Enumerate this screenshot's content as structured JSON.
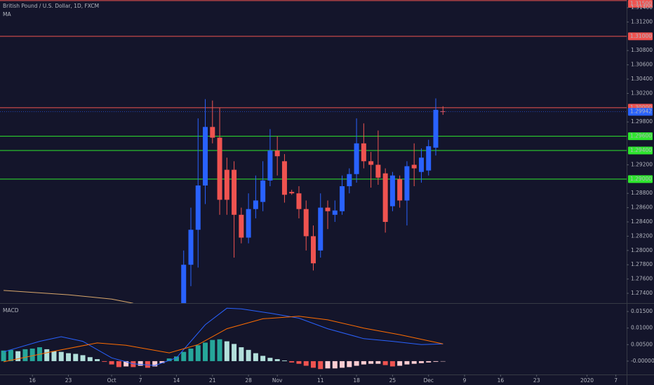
{
  "chart_data": [
    {
      "type": "candlestick",
      "title": "British Pound / U.S. Dollar, 1D, FXCM",
      "x": [
        "Oct 15",
        "Oct 16",
        "Oct 17",
        "Oct 18",
        "Oct 21",
        "Oct 22",
        "Oct 23",
        "Oct 24",
        "Oct 25",
        "Oct 28",
        "Oct 29",
        "Oct 30",
        "Oct 31",
        "Nov 1",
        "Nov 4",
        "Nov 5",
        "Nov 6",
        "Nov 7",
        "Nov 8",
        "Nov 11",
        "Nov 12",
        "Nov 13",
        "Nov 14",
        "Nov 15",
        "Nov 18",
        "Nov 19",
        "Nov 20",
        "Nov 21",
        "Nov 22",
        "Nov 25",
        "Nov 26",
        "Nov 27",
        "Nov 28",
        "Nov 29",
        "Dec 2",
        "Dec 3",
        "Dec 4"
      ],
      "open": [
        1.27,
        1.278,
        1.2829,
        1.2891,
        1.2973,
        1.2958,
        1.2913,
        1.2913,
        1.285,
        1.2818,
        1.2858,
        1.2868,
        1.2898,
        1.294,
        1.2925,
        1.2882,
        1.288,
        1.2858,
        1.282,
        1.28,
        1.286,
        1.285,
        1.2855,
        1.289,
        1.2907,
        1.295,
        1.2925,
        1.292,
        1.2908,
        1.2862,
        1.29,
        1.287,
        1.292,
        1.291,
        1.2912,
        1.2944,
        1.2995
      ],
      "high": [
        1.28,
        1.286,
        1.2985,
        1.3012,
        1.301,
        1.3,
        1.293,
        1.2925,
        1.286,
        1.288,
        1.2905,
        1.2925,
        1.297,
        1.296,
        1.2935,
        1.2885,
        1.289,
        1.287,
        1.2835,
        1.288,
        1.287,
        1.287,
        1.2905,
        1.2915,
        1.2985,
        1.2978,
        1.2938,
        1.2968,
        1.2915,
        1.291,
        1.2905,
        1.2925,
        1.295,
        1.2943,
        1.2955,
        1.3013,
        1.3002
      ],
      "low": [
        1.268,
        1.275,
        1.2776,
        1.2865,
        1.295,
        1.285,
        1.285,
        1.279,
        1.281,
        1.281,
        1.2845,
        1.2855,
        1.289,
        1.2905,
        1.2867,
        1.2878,
        1.2845,
        1.28,
        1.2772,
        1.279,
        1.283,
        1.284,
        1.285,
        1.288,
        1.2895,
        1.2915,
        1.2888,
        1.2892,
        1.2825,
        1.2855,
        1.286,
        1.2835,
        1.289,
        1.2895,
        1.2905,
        1.2933,
        1.299
      ],
      "close": [
        1.278,
        1.2829,
        1.2891,
        1.2973,
        1.2958,
        1.2871,
        1.2871,
        1.285,
        1.2818,
        1.2858,
        1.287,
        1.2898,
        1.294,
        1.2932,
        1.2878,
        1.288,
        1.2858,
        1.282,
        1.2782,
        1.286,
        1.2855,
        1.2856,
        1.289,
        1.2907,
        1.295,
        1.2925,
        1.292,
        1.2902,
        1.284,
        1.2905,
        1.287,
        1.2918,
        1.2915,
        1.293,
        1.2946,
        1.2997,
        1.2994
      ],
      "up_color": "#2962ff",
      "down_color": "#ef5350",
      "ma": {
        "name": "MA",
        "color": "#d9a86c",
        "x": [
          "Sep 10",
          "Sep 23",
          "Oct 1",
          "Oct 4"
        ],
        "values": [
          1.2744,
          1.2738,
          1.2732,
          1.2726
        ]
      },
      "xlim": [
        "Sep 10",
        "Jan 8"
      ],
      "ylim": [
        1.27263,
        1.31508
      ],
      "yticks": [
        {
          "value": 1.274,
          "label": "1.27400"
        },
        {
          "value": 1.276,
          "label": "1.27600"
        },
        {
          "value": 1.278,
          "label": "1.27800"
        },
        {
          "value": 1.28,
          "label": "1.28000"
        },
        {
          "value": 1.282,
          "label": "1.28200"
        },
        {
          "value": 1.284,
          "label": "1.28400"
        },
        {
          "value": 1.286,
          "label": "1.28600"
        },
        {
          "value": 1.288,
          "label": "1.28800"
        },
        {
          "value": 1.292,
          "label": "1.29200"
        },
        {
          "value": 1.298,
          "label": "1.29800"
        },
        {
          "value": 1.302,
          "label": "1.30200"
        },
        {
          "value": 1.304,
          "label": "1.30400"
        },
        {
          "value": 1.306,
          "label": "1.30600"
        },
        {
          "value": 1.308,
          "label": "1.30800"
        },
        {
          "value": 1.312,
          "label": "1.31200"
        },
        {
          "value": 1.314,
          "label": "1.31400"
        }
      ],
      "levels": [
        {
          "value": 1.315,
          "label": "1.31500",
          "color": "#ef5350"
        },
        {
          "value": 1.31,
          "label": "1.31000",
          "color": "#ef5350"
        },
        {
          "value": 1.3,
          "label": "1.30000",
          "color": "#ef5350"
        },
        {
          "value": 1.296,
          "label": "1.29600",
          "color": "#2ee62e"
        },
        {
          "value": 1.294,
          "label": "1.29400",
          "color": "#2ee62e"
        },
        {
          "value": 1.29,
          "label": "1.29000",
          "color": "#2ee62e"
        }
      ],
      "last": {
        "value": 1.29942,
        "label": "1.29942",
        "color": "#2962ff"
      }
    },
    {
      "type": "macd",
      "title": "MACD",
      "x": [
        "Sep 10",
        "Sep 11",
        "Sep 12",
        "Sep 13",
        "Sep 16",
        "Sep 17",
        "Sep 18",
        "Sep 19",
        "Sep 20",
        "Sep 23",
        "Sep 24",
        "Sep 25",
        "Sep 26",
        "Sep 27",
        "Sep 30",
        "Oct 1",
        "Oct 2",
        "Oct 3",
        "Oct 4",
        "Oct 7",
        "Oct 8",
        "Oct 9",
        "Oct 10",
        "Oct 11",
        "Oct 14",
        "Oct 15",
        "Oct 16",
        "Oct 17",
        "Oct 18",
        "Oct 21",
        "Oct 22",
        "Oct 23",
        "Oct 24",
        "Oct 25",
        "Oct 28",
        "Oct 29",
        "Oct 30",
        "Oct 31",
        "Nov 1",
        "Nov 4",
        "Nov 5",
        "Nov 6",
        "Nov 7",
        "Nov 8",
        "Nov 11",
        "Nov 12",
        "Nov 13",
        "Nov 14",
        "Nov 15",
        "Nov 18",
        "Nov 19",
        "Nov 20",
        "Nov 21",
        "Nov 22",
        "Nov 25",
        "Nov 26",
        "Nov 27",
        "Nov 28",
        "Nov 29",
        "Dec 2",
        "Dec 3",
        "Dec 4"
      ],
      "histogram": [
        0.0032,
        0.0034,
        0.003,
        0.0036,
        0.0038,
        0.0042,
        0.0036,
        0.003,
        0.0028,
        0.0024,
        0.0022,
        0.0018,
        0.0012,
        0.0006,
        -0.0002,
        -0.001,
        -0.0018,
        -0.0016,
        -0.0018,
        -0.0014,
        -0.002,
        -0.0016,
        -0.0006,
        0.0008,
        0.0014,
        0.0028,
        0.0038,
        0.0048,
        0.0056,
        0.0064,
        0.0066,
        0.006,
        0.0052,
        0.0042,
        0.0034,
        0.0024,
        0.0016,
        0.001,
        0.0006,
        0.0002,
        -0.0004,
        -0.0008,
        -0.0014,
        -0.002,
        -0.0024,
        -0.0022,
        -0.0022,
        -0.002,
        -0.0018,
        -0.0014,
        -0.001,
        -0.0008,
        -0.0008,
        -0.0012,
        -0.0016,
        -0.0014,
        -0.001,
        -0.0008,
        -0.0006,
        -0.0004,
        -0.0002,
        -0.0001
      ],
      "hist_colors": [
        "#26a69a",
        "#b2dfdb",
        "#ffcdd2",
        "#ef5350"
      ],
      "macd": {
        "color": "#2962ff",
        "x": [
          "Sep 10",
          "Sep 17",
          "Sep 20",
          "Sep 25",
          "Oct 1",
          "Oct 4",
          "Oct 9",
          "Oct 14",
          "Oct 18",
          "Oct 23",
          "Oct 25",
          "Oct 31",
          "Nov 6",
          "Nov 12",
          "Nov 19",
          "Nov 25",
          "Nov 29",
          "Dec 4"
        ],
        "values": [
          0.0028,
          0.006,
          0.0074,
          0.006,
          0.001,
          -0.0008,
          -0.0013,
          0.001,
          0.011,
          0.016,
          0.0158,
          0.0145,
          0.013,
          0.0098,
          0.0068,
          0.006,
          0.005,
          0.0052
        ]
      },
      "signal": {
        "color": "#ff6d00",
        "x": [
          "Sep 10",
          "Sep 19",
          "Sep 27",
          "Oct 3",
          "Oct 11",
          "Oct 17",
          "Oct 23",
          "Oct 30",
          "Nov 6",
          "Nov 12",
          "Nov 19",
          "Nov 26",
          "Dec 4"
        ],
        "values": [
          -0.0002,
          0.003,
          0.0055,
          0.0048,
          0.0025,
          0.005,
          0.0098,
          0.0128,
          0.0136,
          0.0125,
          0.01,
          0.008,
          0.0052
        ]
      },
      "xlim": [
        "Sep 10",
        "Jan 8"
      ],
      "ylim": [
        -0.00404,
        0.01755
      ],
      "yticks": [
        {
          "value": 0,
          "label": "-0.00000"
        },
        {
          "value": 0.005,
          "label": "0.00500"
        },
        {
          "value": 0.01,
          "label": "0.01000"
        },
        {
          "value": 0.015,
          "label": "0.01500"
        }
      ],
      "xticks": [
        {
          "value": "Sep 16",
          "label": "16"
        },
        {
          "value": "Sep 23",
          "label": "23"
        },
        {
          "value": "Oct 1",
          "label": "Oct"
        },
        {
          "value": "Oct 7",
          "label": "7"
        },
        {
          "value": "Oct 14",
          "label": "14"
        },
        {
          "value": "Oct 21",
          "label": "21"
        },
        {
          "value": "Oct 28",
          "label": "28"
        },
        {
          "value": "Nov 1",
          "label": "Nov"
        },
        {
          "value": "Nov 11",
          "label": "11"
        },
        {
          "value": "Nov 18",
          "label": "18"
        },
        {
          "value": "Nov 25",
          "label": "25"
        },
        {
          "value": "Dec 2",
          "label": "Dec"
        },
        {
          "value": "Dec 9",
          "label": "9"
        },
        {
          "value": "Dec 16",
          "label": "16"
        },
        {
          "value": "Dec 23",
          "label": "23"
        },
        {
          "value": "Jan 1",
          "label": "2020"
        },
        {
          "value": "Jan 7",
          "label": "7"
        }
      ]
    }
  ]
}
